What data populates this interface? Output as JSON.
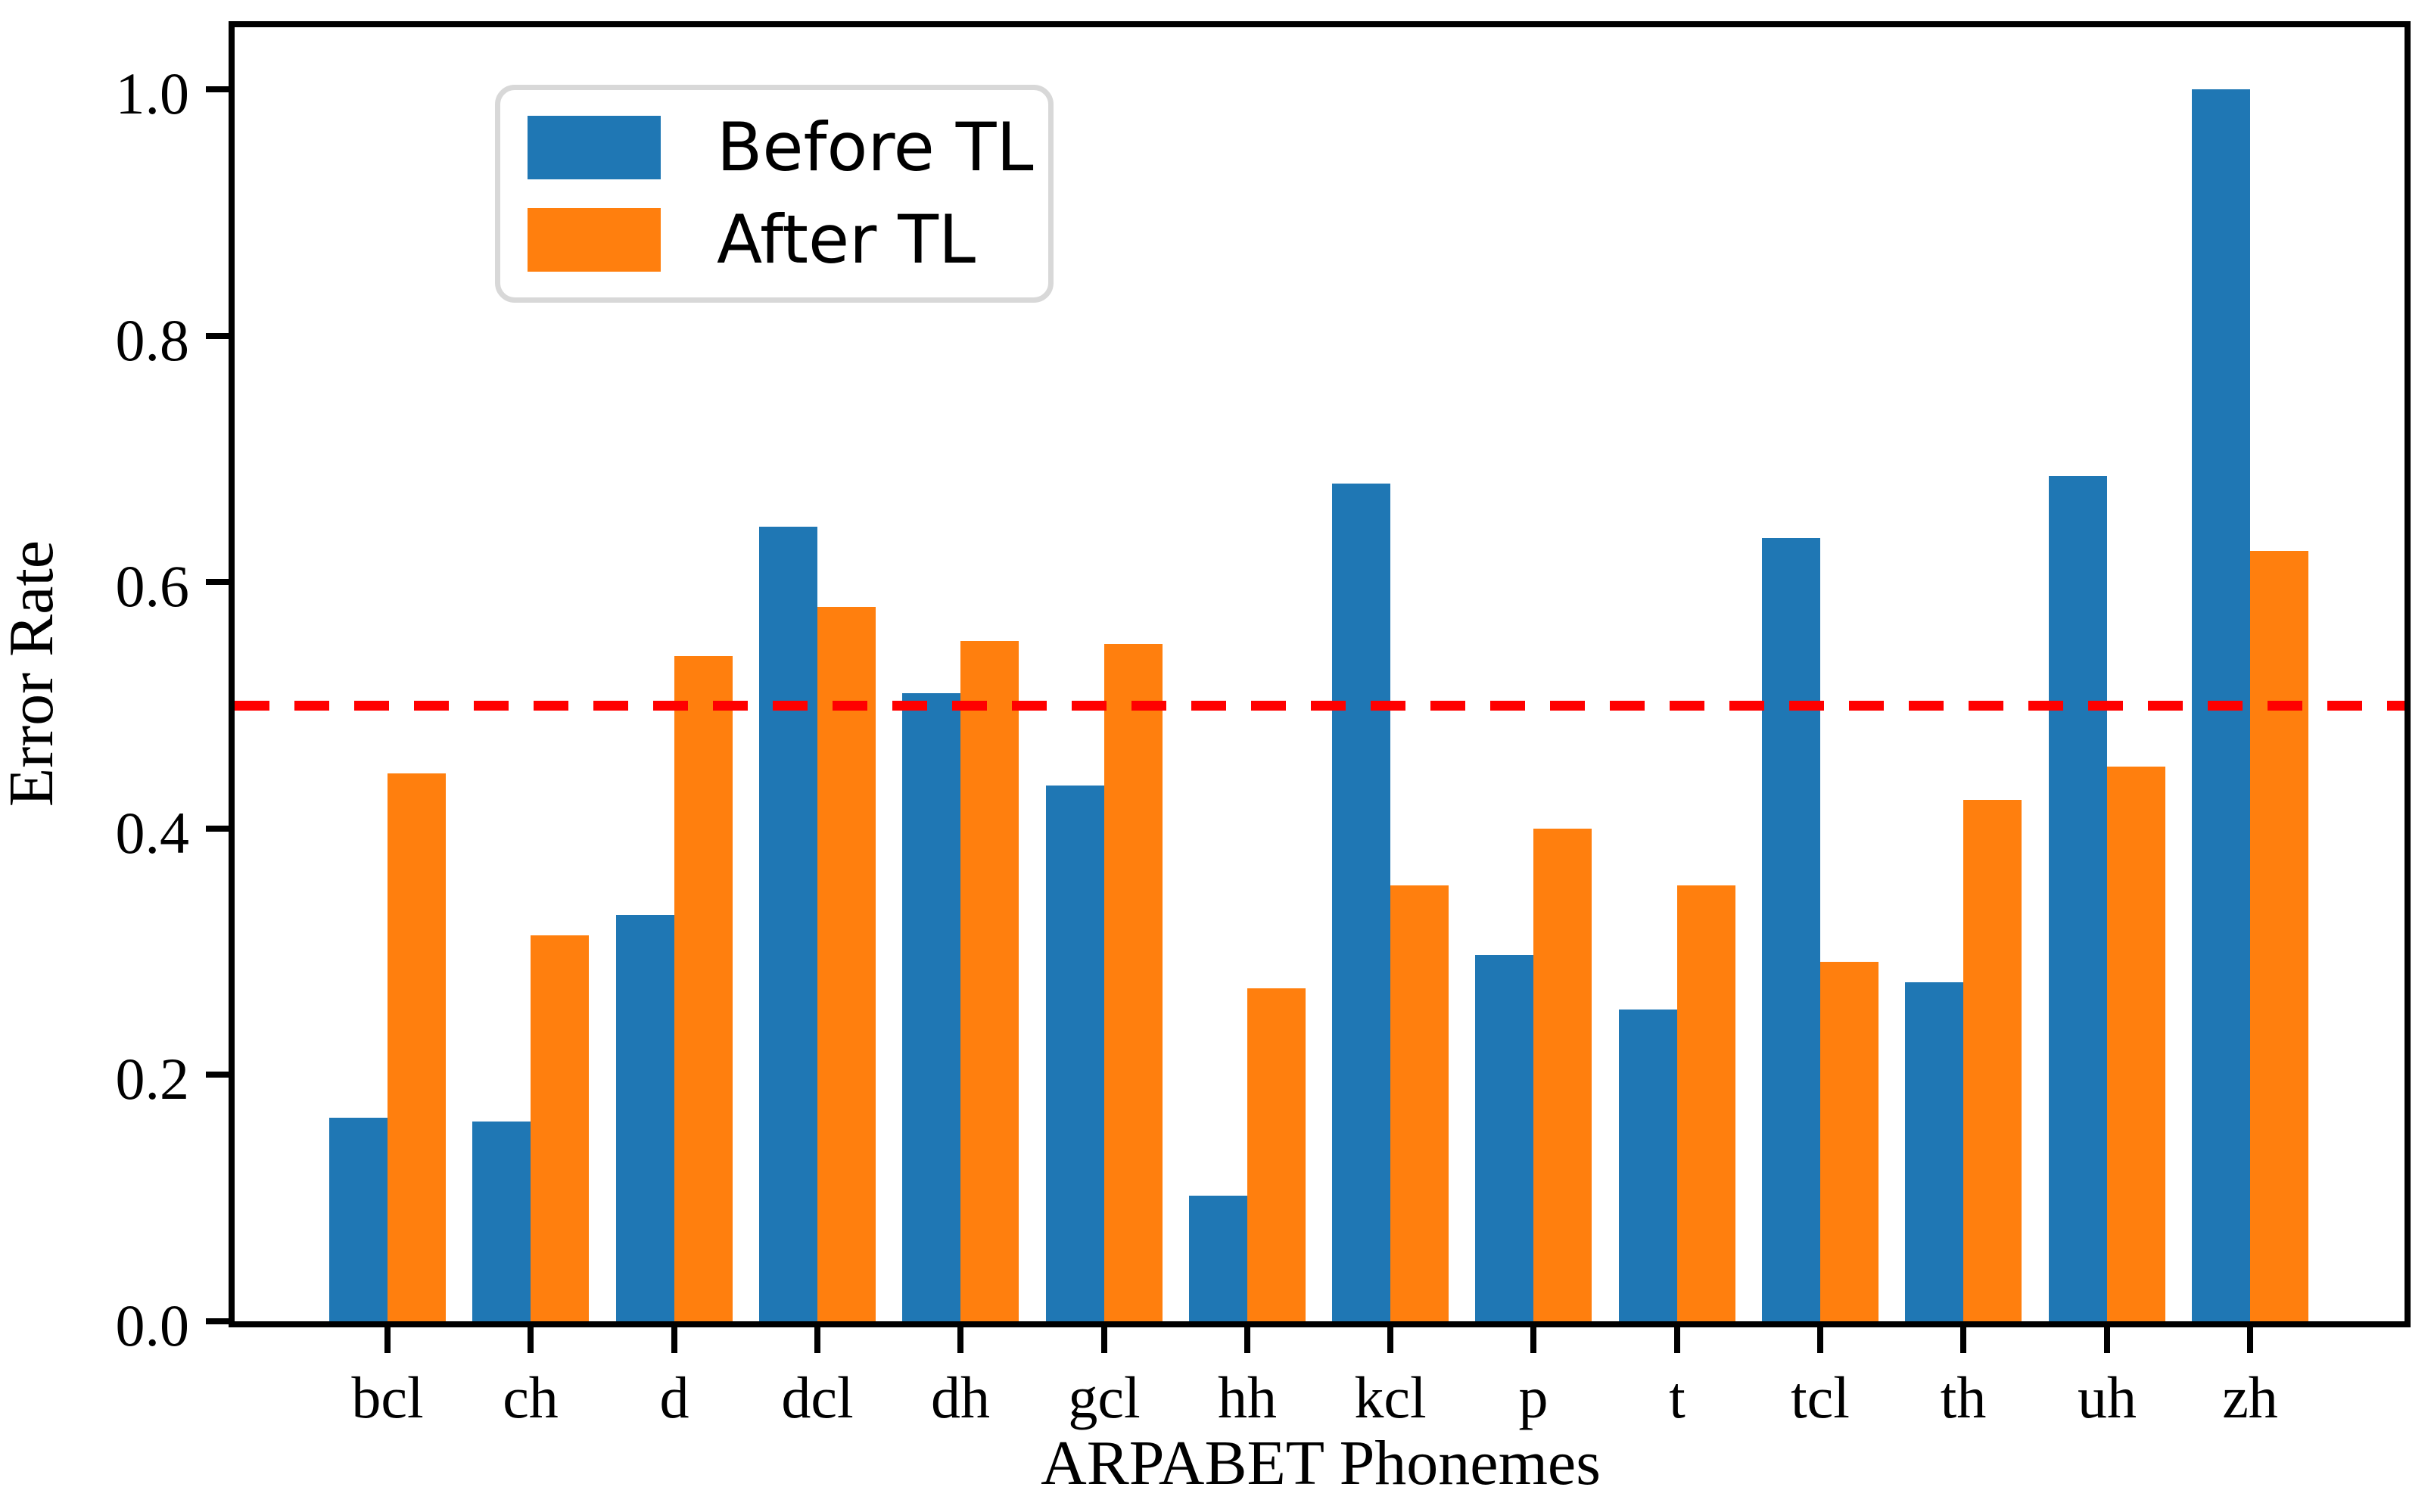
{
  "figure": {
    "background": "#ffffff",
    "axis_color": "#000000"
  },
  "legend": {
    "position": "upper left",
    "items": [
      {
        "label": "Before TL",
        "color": "#1f77b4"
      },
      {
        "label": "After TL",
        "color": "#ff7f0e"
      }
    ]
  },
  "chart_data": {
    "type": "bar",
    "title": "",
    "xlabel": "ARPABET Phonemes",
    "ylabel": "Error Rate",
    "categories": [
      "bcl",
      "ch",
      "d",
      "dcl",
      "dh",
      "gcl",
      "hh",
      "kcl",
      "p",
      "t",
      "tcl",
      "th",
      "uh",
      "zh"
    ],
    "series": [
      {
        "name": "Before TL",
        "color": "#1f77b4",
        "values": [
          0.165,
          0.162,
          0.33,
          0.645,
          0.51,
          0.435,
          0.102,
          0.68,
          0.297,
          0.253,
          0.636,
          0.275,
          0.686,
          1.0
        ]
      },
      {
        "name": "After TL",
        "color": "#ff7f0e",
        "values": [
          0.445,
          0.313,
          0.54,
          0.58,
          0.552,
          0.55,
          0.27,
          0.354,
          0.4,
          0.354,
          0.292,
          0.423,
          0.45,
          0.625
        ]
      }
    ],
    "yticks": [
      "0.0",
      "0.2",
      "0.4",
      "0.6",
      "0.8",
      "1.0"
    ],
    "ytick_values": [
      0.0,
      0.2,
      0.4,
      0.6,
      0.8,
      1.0
    ],
    "ylim": [
      0.0,
      1.05
    ],
    "grid": false,
    "reference_line": {
      "value": 0.5,
      "color": "#ff0000",
      "style": "dashed"
    },
    "legend_position": "upper left"
  }
}
